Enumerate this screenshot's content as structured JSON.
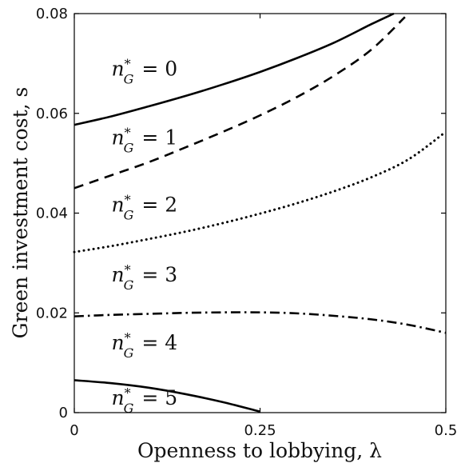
{
  "chart_data": {
    "type": "line",
    "xlabel": "Openness to lobbying, λ",
    "ylabel": "Green investment cost, s",
    "xlim": [
      0,
      0.5
    ],
    "ylim": [
      0,
      0.08
    ],
    "x_ticks": [
      {
        "value": 0,
        "label": "0"
      },
      {
        "value": 0.25,
        "label": "0.25"
      },
      {
        "value": 0.5,
        "label": "0.5"
      }
    ],
    "y_ticks": [
      {
        "value": 0,
        "label": "0"
      },
      {
        "value": 0.02,
        "label": "0.02"
      },
      {
        "value": 0.04,
        "label": "0.04"
      },
      {
        "value": 0.06,
        "label": "0.06"
      },
      {
        "value": 0.08,
        "label": "0.08"
      }
    ],
    "grid": false,
    "series": [
      {
        "style": "solid",
        "x": [
          0,
          0.05,
          0.1,
          0.15,
          0.2,
          0.25,
          0.3,
          0.35,
          0.4,
          0.43
        ],
        "y": [
          0.0577,
          0.0594,
          0.0614,
          0.0635,
          0.0658,
          0.0683,
          0.0711,
          0.0742,
          0.0779,
          0.0803
        ]
      },
      {
        "style": "dashed",
        "x": [
          0,
          0.05,
          0.1,
          0.15,
          0.2,
          0.25,
          0.3,
          0.35,
          0.4,
          0.445
        ],
        "y": [
          0.045,
          0.0476,
          0.0502,
          0.0532,
          0.0563,
          0.0596,
          0.0633,
          0.0676,
          0.0728,
          0.0793
        ]
      },
      {
        "style": "dotted",
        "x": [
          0,
          0.05,
          0.1,
          0.15,
          0.2,
          0.25,
          0.3,
          0.35,
          0.4,
          0.45,
          0.5
        ],
        "y": [
          0.0322,
          0.0334,
          0.0348,
          0.0363,
          0.038,
          0.0399,
          0.042,
          0.0444,
          0.0472,
          0.0508,
          0.0563
        ]
      },
      {
        "style": "dashdot",
        "x": [
          0,
          0.05,
          0.1,
          0.15,
          0.2,
          0.25,
          0.3,
          0.35,
          0.4,
          0.45,
          0.5
        ],
        "y": [
          0.0193,
          0.0196,
          0.0198,
          0.02,
          0.0201,
          0.0201,
          0.0199,
          0.0194,
          0.0187,
          0.0176,
          0.016
        ]
      },
      {
        "style": "solid",
        "x": [
          0,
          0.05,
          0.1,
          0.15,
          0.2,
          0.25
        ],
        "y": [
          0.0065,
          0.0059,
          0.005,
          0.0037,
          0.0021,
          0.0002
        ]
      }
    ],
    "region_labels": [
      {
        "text": "n*_G = 0",
        "x": 0.05,
        "y": 0.0676
      },
      {
        "text": "n*_G = 1",
        "x": 0.05,
        "y": 0.0538
      },
      {
        "text": "n*_G = 2",
        "x": 0.05,
        "y": 0.0403
      },
      {
        "text": "n*_G = 3",
        "x": 0.05,
        "y": 0.0263
      },
      {
        "text": "n*_G = 4",
        "x": 0.05,
        "y": 0.0127
      },
      {
        "text": "n*_G = 5",
        "x": 0.05,
        "y": 0.0016
      }
    ],
    "colors": {
      "lines": "#000000",
      "axes": "#000000",
      "text": "#111111"
    }
  }
}
